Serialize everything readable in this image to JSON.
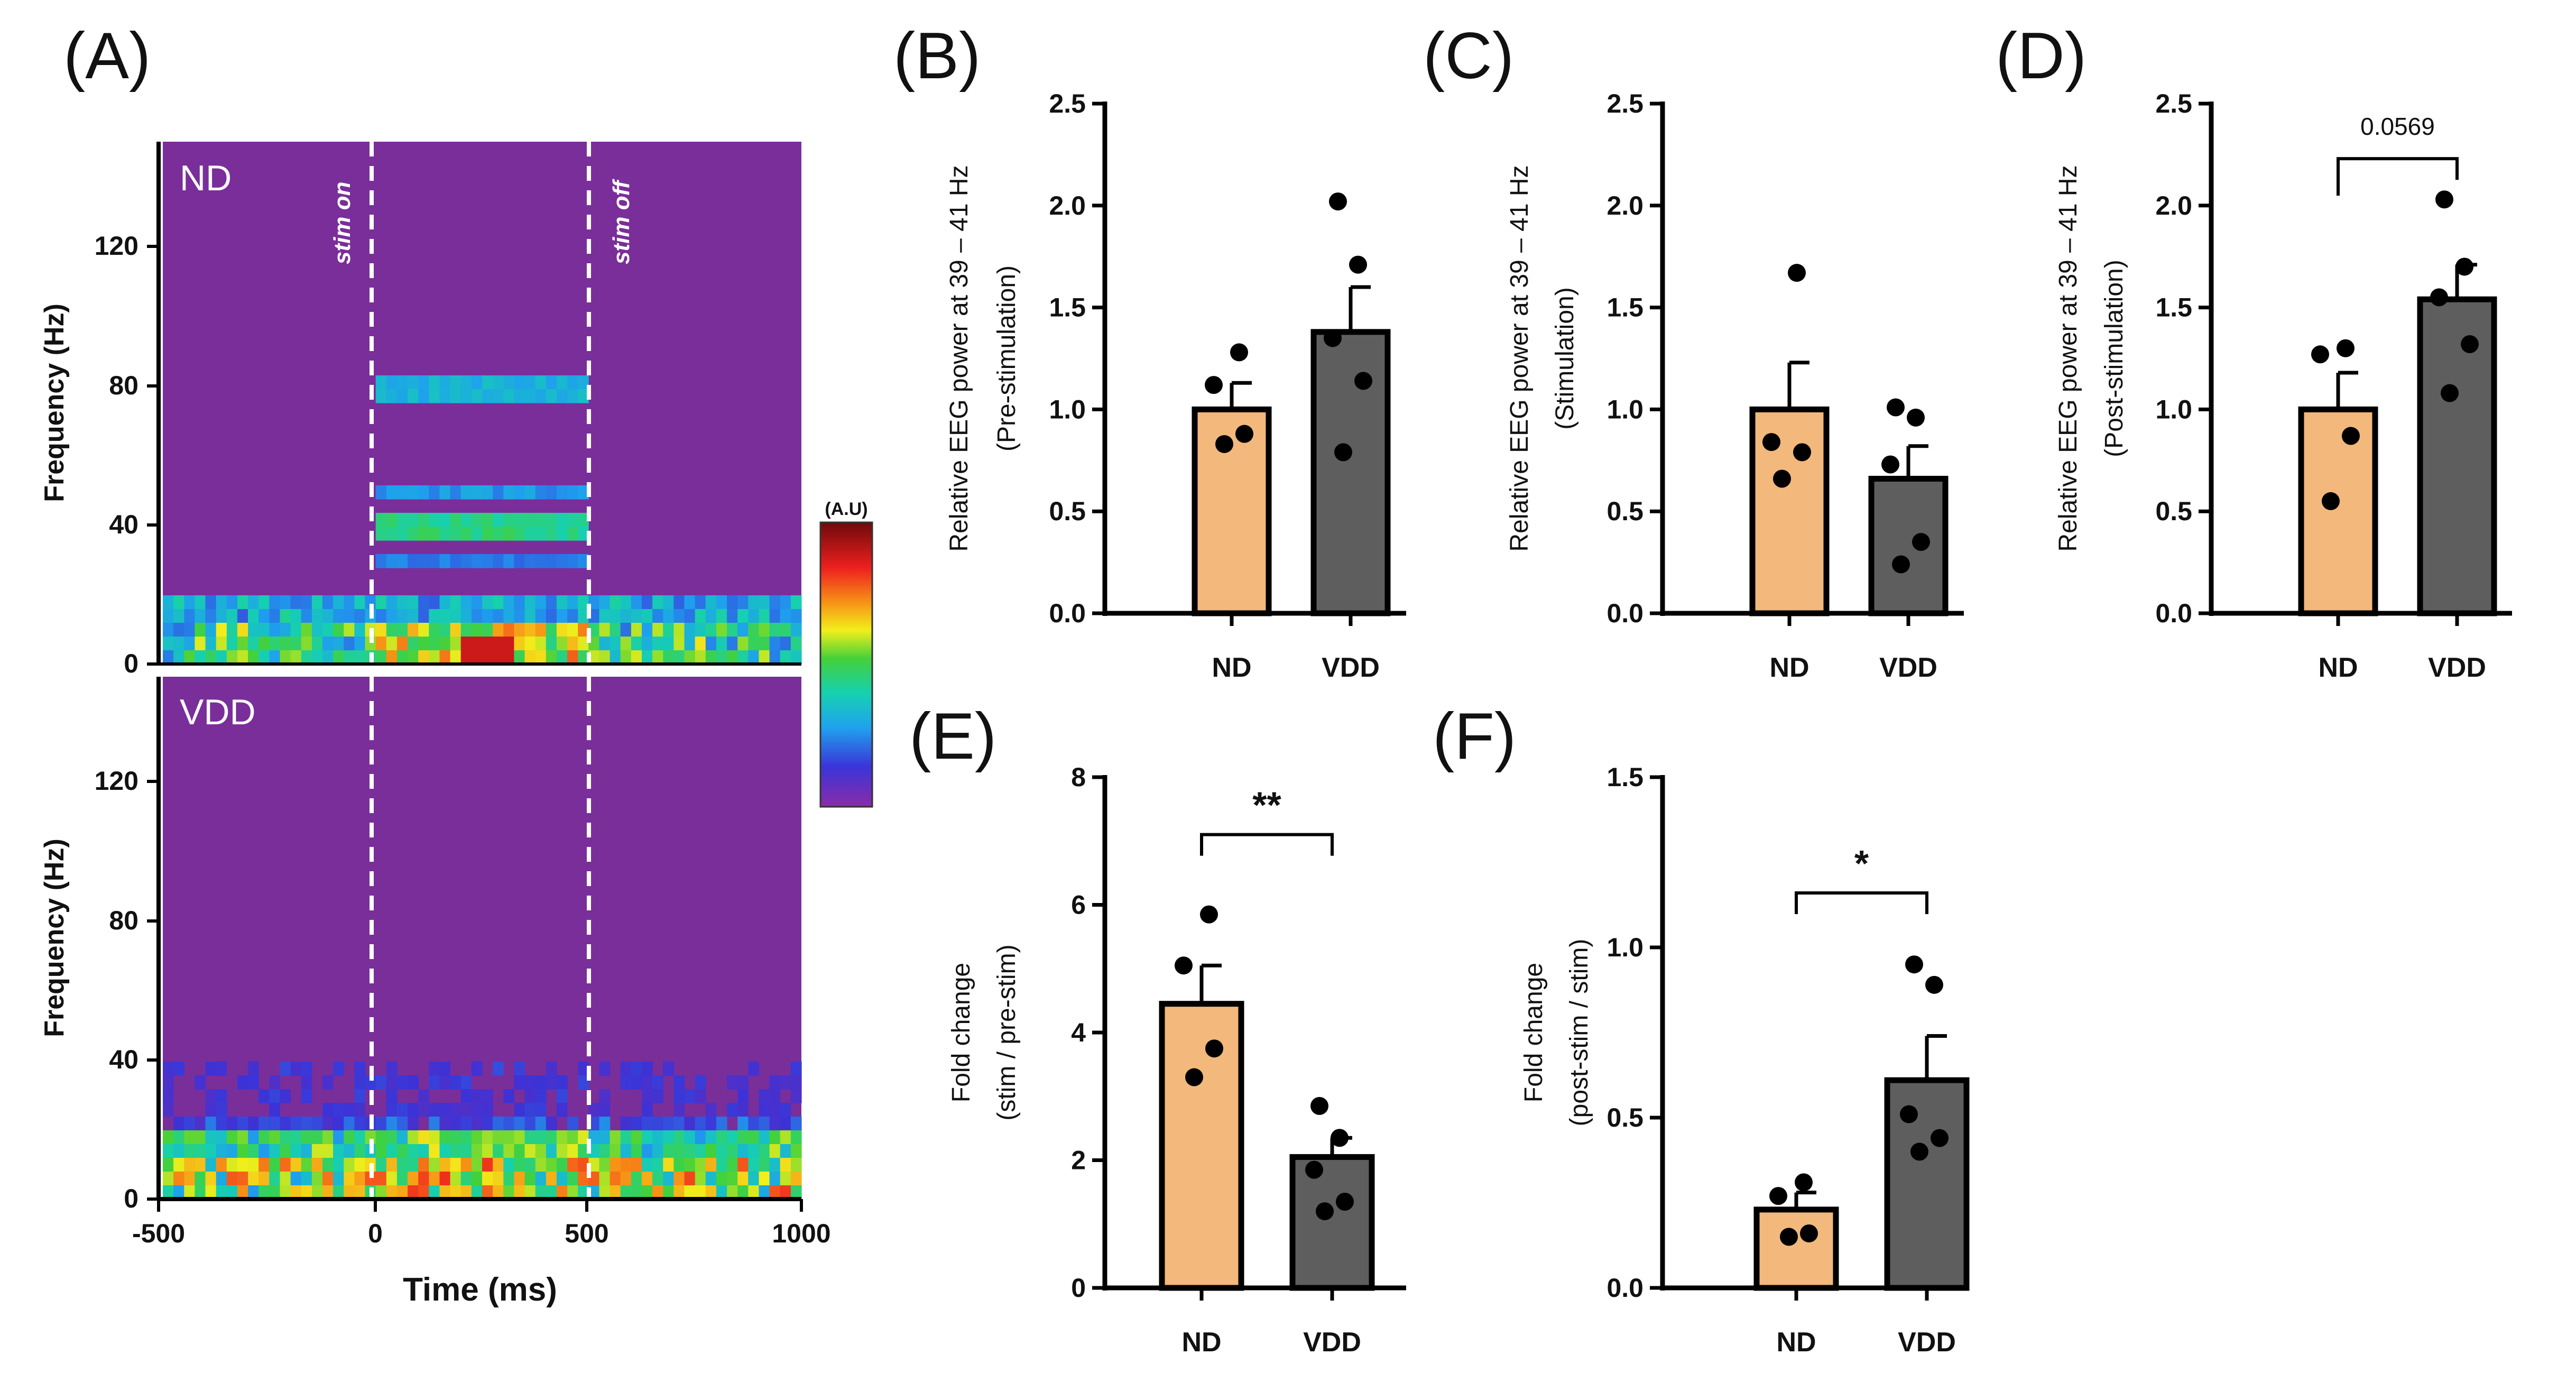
{
  "colors": {
    "nd_bar": "#F2B87C",
    "vdd_bar": "#5E5E5E",
    "axis": "#000000",
    "spectro_bg": "#7A2E9A"
  },
  "chart_data": [
    {
      "id": "A",
      "type": "heatmap",
      "panel_letter": "(A)",
      "xlabel": "Time (ms)",
      "ylabel": "Frequency (Hz)",
      "xlim": [
        -500,
        1000
      ],
      "ylim": [
        0,
        150
      ],
      "xticks": [
        "-500",
        "0",
        "500",
        "1000"
      ],
      "yticks": [
        "0",
        "40",
        "80",
        "120"
      ],
      "colorbar_label": "(A.U)",
      "annotations": {
        "stim_on": "stim on",
        "stim_off": "stim off"
      },
      "panels": [
        {
          "name": "ND",
          "label": "ND"
        },
        {
          "name": "VDD",
          "label": "VDD"
        }
      ]
    },
    {
      "id": "B",
      "type": "bar",
      "panel_letter": "(B)",
      "categories": [
        "ND",
        "VDD"
      ],
      "ylabel": [
        "Relative EEG power at 39 – 41 Hz",
        "(Pre-stimulation)"
      ],
      "ylim": [
        0,
        2.5
      ],
      "yticks": [
        "0.0",
        "0.5",
        "1.0",
        "1.5",
        "2.0",
        "2.5"
      ],
      "means": [
        1.0,
        1.38
      ],
      "sem": [
        0.13,
        0.22
      ],
      "points": [
        [
          0.83,
          0.88,
          1.12,
          1.28
        ],
        [
          0.79,
          1.14,
          1.35,
          1.71,
          2.02
        ]
      ]
    },
    {
      "id": "C",
      "type": "bar",
      "panel_letter": "(C)",
      "categories": [
        "ND",
        "VDD"
      ],
      "ylabel": [
        "Relative EEG power at 39 – 41 Hz",
        "(Stimulation)"
      ],
      "ylim": [
        0,
        2.5
      ],
      "yticks": [
        "0.0",
        "0.5",
        "1.0",
        "1.5",
        "2.0",
        "2.5"
      ],
      "means": [
        1.0,
        0.66
      ],
      "sem": [
        0.23,
        0.16
      ],
      "points": [
        [
          0.66,
          0.79,
          0.84,
          1.67
        ],
        [
          0.24,
          0.35,
          0.73,
          0.96,
          1.01
        ]
      ]
    },
    {
      "id": "D",
      "type": "bar",
      "panel_letter": "(D)",
      "categories": [
        "ND",
        "VDD"
      ],
      "ylabel": [
        "Relative EEG power at 39 – 41 Hz",
        "(Post-stimulation)"
      ],
      "ylim": [
        0,
        2.5
      ],
      "yticks": [
        "0.0",
        "0.5",
        "1.0",
        "1.5",
        "2.0",
        "2.5"
      ],
      "means": [
        1.0,
        1.54
      ],
      "sem": [
        0.18,
        0.17
      ],
      "points": [
        [
          0.55,
          0.87,
          1.27,
          1.3
        ],
        [
          1.08,
          1.32,
          1.55,
          1.7,
          2.03
        ]
      ],
      "significance": "0.0569"
    },
    {
      "id": "E",
      "type": "bar",
      "panel_letter": "(E)",
      "categories": [
        "ND",
        "VDD"
      ],
      "ylabel": [
        "Fold change",
        "(stim / pre-stim)"
      ],
      "ylim": [
        0,
        8
      ],
      "yticks": [
        "0",
        "2",
        "4",
        "6",
        "8"
      ],
      "means": [
        4.45,
        2.05
      ],
      "sem": [
        0.6,
        0.3
      ],
      "points": [
        [
          3.3,
          3.75,
          5.05,
          5.85
        ],
        [
          1.2,
          1.35,
          1.85,
          2.35,
          2.85
        ]
      ],
      "significance": "**"
    },
    {
      "id": "F",
      "type": "bar",
      "panel_letter": "(F)",
      "categories": [
        "ND",
        "VDD"
      ],
      "ylabel": [
        "Fold change",
        "(post-stim / stim)"
      ],
      "ylim": [
        0,
        1.5
      ],
      "yticks": [
        "0.0",
        "0.5",
        "1.0",
        "1.5"
      ],
      "means": [
        0.23,
        0.61
      ],
      "sem": [
        0.05,
        0.13
      ],
      "points": [
        [
          0.15,
          0.16,
          0.27,
          0.31
        ],
        [
          0.4,
          0.44,
          0.51,
          0.89,
          0.95
        ]
      ],
      "significance": "*"
    }
  ]
}
